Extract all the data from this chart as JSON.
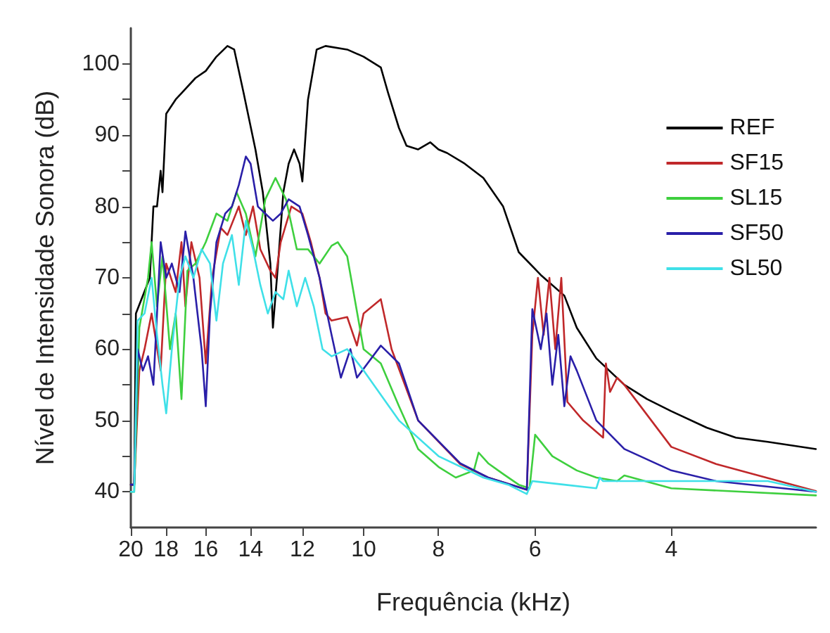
{
  "chart_data": {
    "type": "line",
    "xlabel": "Frequência (kHz)",
    "ylabel": "Nível de Intensidade Sonora (dB)",
    "log": "x",
    "xlim": [
      20,
      2.6
    ],
    "xticks": [
      20,
      18,
      16,
      14,
      12,
      10,
      8,
      6,
      4
    ],
    "ylim": [
      35,
      105
    ],
    "yticks": [
      40,
      {
        "value": 45,
        "label": null
      },
      50,
      {
        "value": 55,
        "label": null
      },
      60,
      {
        "value": 65,
        "label": null
      },
      70,
      {
        "value": 75,
        "label": null
      },
      80,
      {
        "value": 85,
        "label": null
      },
      90,
      {
        "value": 95,
        "label": null
      },
      100
    ],
    "grid": false,
    "legend": "top right",
    "marker": "none",
    "line_style": "solid",
    "series": [
      {
        "name": "REF",
        "color": "#000000",
        "x": [
          20,
          19.8,
          19.7,
          18.9,
          18.7,
          18.5,
          18.3,
          18.2,
          18.0,
          17.5,
          16.5,
          16,
          15.5,
          15,
          14.7,
          14.3,
          13.8,
          13.5,
          13.2,
          13.1,
          12.9,
          12.7,
          12.5,
          12.3,
          12.1,
          12.0,
          11.8,
          11.5,
          11.2,
          10.5,
          10,
          9.5,
          9.3,
          9,
          8.8,
          8.5,
          8.2,
          8.0,
          7.8,
          7.4,
          7,
          6.6,
          6.3,
          5.9,
          5.5,
          5.3,
          5.0,
          4.6,
          4.3,
          4.0,
          3.6,
          3.3,
          3.0,
          2.6
        ],
        "values": [
          41,
          41,
          65,
          70,
          80,
          80,
          85,
          82,
          93,
          95,
          98,
          99,
          101,
          102.5,
          102,
          96,
          88,
          82,
          72,
          63,
          72,
          82,
          86,
          88,
          86,
          83.5,
          95,
          102,
          102.5,
          102,
          101,
          99.5,
          96,
          91,
          88.5,
          88,
          89,
          88,
          87.5,
          86,
          84,
          80,
          73.6,
          70.4,
          67.5,
          63,
          58.7,
          55,
          53,
          51.3,
          49,
          47.6,
          47,
          46
        ]
      },
      {
        "name": "SF15",
        "color": "#c0282a",
        "x": [
          20,
          19.8,
          19.5,
          19.2,
          18.8,
          18.3,
          18.0,
          17.5,
          17.2,
          17.0,
          16.7,
          16.3,
          16,
          15.7,
          15.3,
          15,
          14.5,
          14.2,
          13.9,
          13.6,
          13.2,
          13.0,
          12.8,
          12.4,
          12.0,
          11.7,
          11.4,
          11.2,
          11,
          10.5,
          10.2,
          10,
          9.5,
          9.2,
          8.5,
          7.5,
          6.9,
          6.15,
          6.05,
          5.95,
          5.85,
          5.75,
          5.65,
          5.55,
          5.45,
          5.2,
          4.9,
          4.86,
          4.8,
          4.7,
          4.6,
          4.0,
          3.5,
          2.6
        ],
        "values": [
          41,
          41,
          57,
          60,
          65,
          57,
          72,
          68,
          75,
          66,
          75,
          70,
          58,
          70,
          77,
          76,
          80,
          76,
          80,
          74,
          71,
          70,
          75,
          80,
          79,
          75,
          70,
          65,
          64,
          64.5,
          60.5,
          65,
          67,
          60,
          50,
          43.9,
          42,
          40.3,
          62,
          70,
          62,
          70,
          60,
          70,
          52.6,
          50,
          47.6,
          58,
          54,
          56,
          55,
          46.3,
          43.9,
          40.1
        ]
      },
      {
        "name": "SL15",
        "color": "#3ecf3e",
        "x": [
          20,
          19.8,
          19.5,
          19.0,
          18.8,
          18.5,
          18.2,
          17.8,
          17.5,
          17.2,
          16.9,
          16.5,
          16.0,
          15.5,
          15.0,
          14.6,
          14.2,
          13.8,
          13.4,
          13.0,
          12.6,
          12.2,
          11.8,
          11.4,
          11.0,
          10.8,
          10.5,
          10,
          9.5,
          9,
          8.5,
          8,
          7.6,
          7.2,
          7.1,
          6.9,
          6.6,
          6.3,
          6.1,
          6.0,
          5.7,
          5.3,
          5.0,
          4.7,
          4.6,
          4.0,
          2.6
        ],
        "values": [
          40,
          40,
          63,
          70,
          75,
          66,
          73,
          60,
          65,
          53,
          71,
          72,
          75,
          79,
          78,
          82,
          79,
          73,
          81,
          84,
          81,
          74,
          74,
          72,
          74.5,
          75,
          73,
          60,
          58,
          52,
          46,
          43.5,
          42,
          43,
          45.5,
          44,
          42.5,
          41,
          40.5,
          48,
          45,
          43,
          42,
          41.5,
          42.3,
          40.5,
          39.5
        ]
      },
      {
        "name": "SF50",
        "color": "#2a1fa8",
        "x": [
          20,
          19.8,
          19.6,
          19.3,
          19.0,
          18.7,
          18.3,
          18.0,
          17.7,
          17.3,
          17.0,
          16.6,
          16.2,
          16.0,
          15.8,
          15.5,
          15.1,
          14.8,
          14.5,
          14.2,
          14.0,
          13.7,
          13.4,
          13.1,
          12.8,
          12.5,
          12.1,
          11.8,
          11.4,
          11.0,
          10.7,
          10.4,
          10.2,
          9.5,
          9.0,
          8.5,
          7.5,
          6.9,
          6.15,
          6.05,
          5.9,
          5.8,
          5.7,
          5.6,
          5.5,
          5.4,
          5.3,
          5.0,
          4.6,
          4.0,
          3.5,
          2.6
        ],
        "values": [
          41,
          41,
          60,
          57,
          59,
          55,
          75,
          70,
          72,
          68,
          76.5,
          70,
          60,
          52,
          65,
          75,
          79,
          80,
          83,
          87,
          86,
          80,
          79,
          78,
          79,
          81,
          80,
          76,
          70,
          62,
          56,
          60,
          56,
          60.5,
          58,
          50,
          44,
          42,
          40.3,
          65.6,
          60,
          65,
          55,
          62,
          52,
          59,
          57,
          50,
          46,
          43,
          41.5,
          40
        ]
      },
      {
        "name": "SL50",
        "color": "#3fe0e8",
        "x": [
          20,
          19.8,
          19.6,
          19.2,
          18.8,
          18.5,
          18.2,
          18.0,
          17.7,
          17.3,
          17.0,
          16.6,
          16.2,
          15.8,
          15.5,
          15.2,
          14.8,
          14.5,
          14.2,
          13.9,
          13.6,
          13.3,
          13.0,
          12.7,
          12.5,
          12.2,
          11.9,
          11.6,
          11.3,
          11.0,
          10.5,
          10,
          9,
          8,
          7,
          6.5,
          6.15,
          6.05,
          5.5,
          5.0,
          4.95,
          4.9,
          3.0,
          2.6
        ],
        "values": [
          40,
          40,
          64,
          65,
          70,
          62,
          55,
          51,
          60,
          70,
          73,
          70,
          74,
          72,
          64,
          72,
          76,
          69,
          78,
          74,
          69,
          65,
          68,
          67,
          71,
          66,
          70,
          66,
          60,
          59,
          60,
          57,
          50,
          45,
          42,
          41,
          39.7,
          41.5,
          41,
          40.5,
          42,
          41.5,
          41.5,
          40
        ]
      }
    ]
  }
}
